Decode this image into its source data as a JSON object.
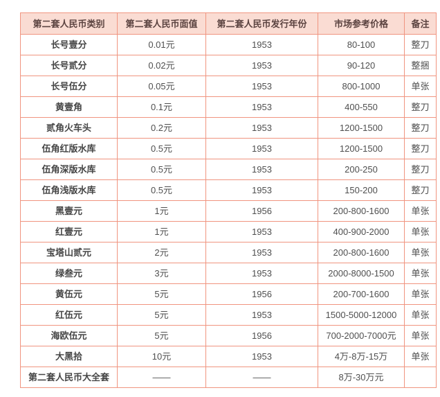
{
  "colors": {
    "header_background": "#fadcd3",
    "table_border": "#f0947f",
    "header_text": "#5b4340",
    "body_text": "#4f4f4f",
    "page_background": "#ffffff"
  },
  "chart_data": {
    "type": "table",
    "title": "",
    "columns": [
      "第二套人民币类别",
      "第二套人民币面值",
      "第二套人民币发行年份",
      "市场参考价格",
      "备注"
    ],
    "rows": [
      [
        "长号壹分",
        "0.01元",
        "1953",
        "80-100",
        "整刀"
      ],
      [
        "长号贰分",
        "0.02元",
        "1953",
        "90-120",
        "整捆"
      ],
      [
        "长号伍分",
        "0.05元",
        "1953",
        "800-1000",
        "单张"
      ],
      [
        "黄壹角",
        "0.1元",
        "1953",
        "400-550",
        "整刀"
      ],
      [
        "贰角火车头",
        "0.2元",
        "1953",
        "1200-1500",
        "整刀"
      ],
      [
        "伍角红版水库",
        "0.5元",
        "1953",
        "1200-1500",
        "整刀"
      ],
      [
        "伍角深版水库",
        "0.5元",
        "1953",
        "200-250",
        "整刀"
      ],
      [
        "伍角浅版水库",
        "0.5元",
        "1953",
        "150-200",
        "整刀"
      ],
      [
        "黑壹元",
        "1元",
        "1956",
        "200-800-1600",
        "单张"
      ],
      [
        "红壹元",
        "1元",
        "1953",
        "400-900-2000",
        "单张"
      ],
      [
        "宝塔山贰元",
        "2元",
        "1953",
        "200-800-1600",
        "单张"
      ],
      [
        "绿叁元",
        "3元",
        "1953",
        "2000-8000-1500",
        "单张"
      ],
      [
        "黄伍元",
        "5元",
        "1956",
        "200-700-1600",
        "单张"
      ],
      [
        "红伍元",
        "5元",
        "1953",
        "1500-5000-12000",
        "单张"
      ],
      [
        "海欧伍元",
        "5元",
        "1956",
        "700-2000-7000元",
        "单张"
      ],
      [
        "大黑拾",
        "10元",
        "1953",
        "4万-8万-15万",
        "单张"
      ],
      [
        "第二套人民币大全套",
        "——",
        "——",
        "8万-30万元",
        ""
      ]
    ]
  }
}
